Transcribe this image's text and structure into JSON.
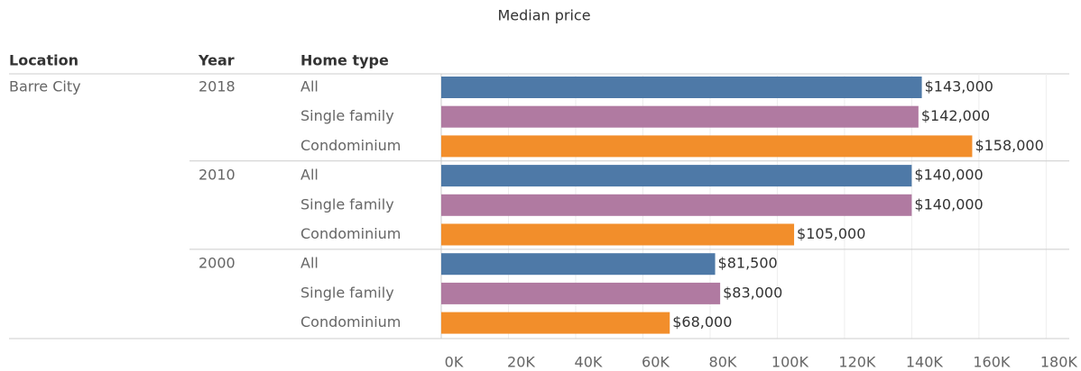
{
  "chart_data": {
    "type": "bar",
    "orientation": "horizontal",
    "title": "Median price",
    "column_headers": [
      "Location",
      "Year",
      "Home type"
    ],
    "location": "Barre City",
    "years": [
      2018,
      2010,
      2000
    ],
    "categories": [
      "All",
      "Single family",
      "Condominium"
    ],
    "colors": [
      "#4e79a7",
      "#b07aa1",
      "#f28e2b"
    ],
    "values": [
      [
        143000,
        142000,
        158000
      ],
      [
        140000,
        140000,
        105000
      ],
      [
        81500,
        83000,
        68000
      ]
    ],
    "value_labels": [
      [
        "$143,000",
        "$142,000",
        "$158,000"
      ],
      [
        "$140,000",
        "$140,000",
        "$105,000"
      ],
      [
        "$81,500",
        "$83,000",
        "$68,000"
      ]
    ],
    "xlim": [
      0,
      185000
    ],
    "xticks": [
      {
        "value": 0,
        "label": "0K"
      },
      {
        "value": 20000,
        "label": "20K"
      },
      {
        "value": 40000,
        "label": "40K"
      },
      {
        "value": 60000,
        "label": "60K"
      },
      {
        "value": 80000,
        "label": "80K"
      },
      {
        "value": 100000,
        "label": "100K"
      },
      {
        "value": 120000,
        "label": "120K"
      },
      {
        "value": 140000,
        "label": "140K"
      },
      {
        "value": 160000,
        "label": "160K"
      },
      {
        "value": 180000,
        "label": "180K"
      }
    ],
    "grid": true
  }
}
